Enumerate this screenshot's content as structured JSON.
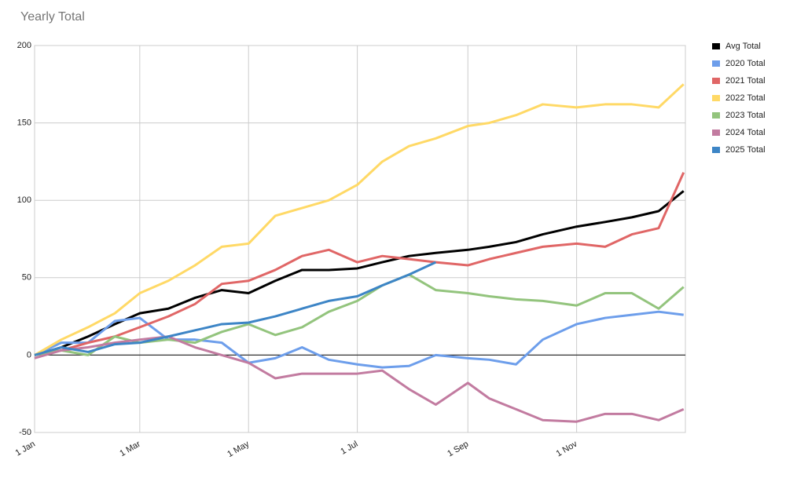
{
  "chart_data": {
    "type": "line",
    "title": "Yearly Total",
    "x": [
      0,
      15,
      30,
      45,
      59,
      75,
      90,
      105,
      120,
      135,
      150,
      165,
      181,
      195,
      210,
      225,
      243,
      255,
      270,
      285,
      304,
      320,
      335,
      350,
      364
    ],
    "xlim": [
      0,
      365
    ],
    "xticks": [
      {
        "value": 0,
        "label": "1 Jan"
      },
      {
        "value": 59,
        "label": "1 Mar"
      },
      {
        "value": 120,
        "label": "1 May"
      },
      {
        "value": 181,
        "label": "1 Jul"
      },
      {
        "value": 243,
        "label": "1 Sep"
      },
      {
        "value": 304,
        "label": "1 Nov"
      }
    ],
    "ylim": [
      -50,
      200
    ],
    "yticks": [
      -50,
      0,
      50,
      100,
      150,
      200
    ],
    "grid": true,
    "legend": "right",
    "series": [
      {
        "name": "Avg Total",
        "color": "#000000",
        "values": [
          0,
          5,
          12,
          20,
          27,
          30,
          37,
          42,
          40,
          48,
          55,
          55,
          56,
          60,
          64,
          66,
          68,
          70,
          73,
          78,
          83,
          86,
          89,
          93,
          106
        ]
      },
      {
        "name": "2020 Total",
        "color": "#6d9eeb",
        "values": [
          0,
          8,
          8,
          22,
          24,
          10,
          10,
          8,
          -5,
          -2,
          5,
          -3,
          -6,
          -8,
          -7,
          0,
          -2,
          -3,
          -6,
          10,
          20,
          24,
          26,
          28,
          26
        ]
      },
      {
        "name": "2021 Total",
        "color": "#e06666",
        "values": [
          0,
          3,
          8,
          12,
          18,
          25,
          33,
          46,
          48,
          55,
          64,
          68,
          60,
          64,
          62,
          60,
          58,
          62,
          66,
          70,
          72,
          70,
          78,
          82,
          118
        ]
      },
      {
        "name": "2022 Total",
        "color": "#ffd966",
        "values": [
          0,
          10,
          18,
          27,
          40,
          48,
          58,
          70,
          72,
          90,
          95,
          100,
          110,
          125,
          135,
          140,
          148,
          150,
          155,
          162,
          160,
          162,
          162,
          160,
          175
        ]
      },
      {
        "name": "2023 Total",
        "color": "#93c47d",
        "values": [
          0,
          3,
          0,
          12,
          8,
          10,
          8,
          15,
          20,
          13,
          18,
          28,
          35,
          45,
          52,
          42,
          40,
          38,
          36,
          35,
          32,
          40,
          40,
          30,
          44
        ]
      },
      {
        "name": "2024 Total",
        "color": "#c27ba0",
        "values": [
          -2,
          3,
          5,
          8,
          10,
          12,
          5,
          0,
          -5,
          -15,
          -12,
          -12,
          -12,
          -10,
          -22,
          -32,
          -18,
          -28,
          -35,
          -42,
          -43,
          -38,
          -38,
          -42,
          -35
        ]
      },
      {
        "name": "2025 Total",
        "color": "#3d85c6",
        "values": [
          0,
          5,
          2,
          7,
          8,
          12,
          16,
          20,
          21,
          25,
          30,
          35,
          38,
          45,
          52,
          60,
          null,
          null,
          null,
          null,
          null,
          null,
          null,
          null,
          null
        ]
      }
    ]
  }
}
